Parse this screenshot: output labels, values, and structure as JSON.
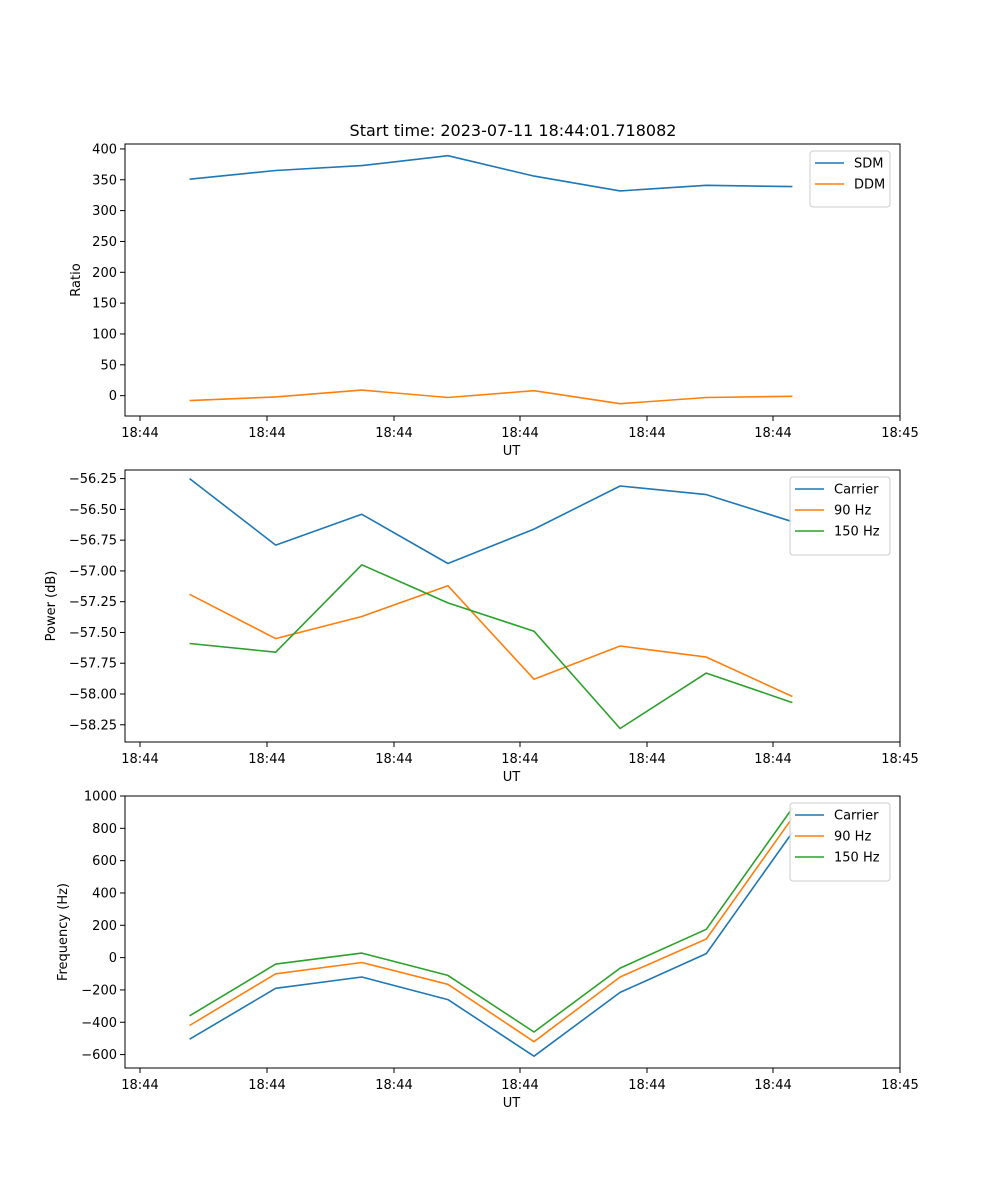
{
  "title": "Start time: 2023-07-11 18:44:01.718082",
  "colors": {
    "c0": "#1f77b4",
    "c1": "#ff7f0e",
    "c2": "#2ca02c"
  },
  "chart_data": [
    {
      "type": "line",
      "title": "Start time: 2023-07-11 18:44:01.718082",
      "xlabel": "UT",
      "ylabel": "Ratio",
      "xticks": [
        "18:44",
        "18:44",
        "18:44",
        "18:44",
        "18:44",
        "18:44",
        "18:44"
      ],
      "xlim": [
        0,
        9
      ],
      "x": [
        0.75,
        1.75,
        2.75,
        3.75,
        4.75,
        5.75,
        6.75,
        7.75
      ],
      "ylim": [
        -33,
        408
      ],
      "yticks": [
        0,
        50,
        100,
        150,
        200,
        250,
        300,
        350,
        400
      ],
      "legend_loc": "upper-right",
      "series": [
        {
          "name": "SDM",
          "color": "#1f77b4",
          "values": [
            351,
            365,
            373,
            389,
            356,
            332,
            341,
            339
          ]
        },
        {
          "name": "DDM",
          "color": "#ff7f0e",
          "values": [
            -8,
            -2,
            9,
            -3,
            8,
            -13,
            -3,
            -1
          ]
        }
      ]
    },
    {
      "type": "line",
      "title": "",
      "xlabel": "UT",
      "ylabel": "Power (dB)",
      "xticks": [
        "18:44",
        "18:44",
        "18:44",
        "18:44",
        "18:44",
        "18:44",
        "18:44"
      ],
      "xlim": [
        0,
        9
      ],
      "x": [
        0.75,
        1.75,
        2.75,
        3.75,
        4.75,
        5.75,
        6.75,
        7.75
      ],
      "ylim": [
        -58.39,
        -56.18
      ],
      "yticks": [
        -58.25,
        -58.0,
        -57.75,
        -57.5,
        -57.25,
        -57.0,
        -56.75,
        -56.5,
        -56.25
      ],
      "tick_format": "2dp",
      "legend_loc": "upper-right",
      "series": [
        {
          "name": "Carrier",
          "color": "#1f77b4",
          "values": [
            -56.25,
            -56.79,
            -56.54,
            -56.94,
            -56.66,
            -56.31,
            -56.38,
            -56.6
          ]
        },
        {
          "name": "90 Hz",
          "color": "#ff7f0e",
          "values": [
            -57.19,
            -57.55,
            -57.37,
            -57.12,
            -57.88,
            -57.61,
            -57.7,
            -58.02
          ]
        },
        {
          "name": "150 Hz",
          "color": "#2ca02c",
          "values": [
            -57.59,
            -57.66,
            -56.95,
            -57.26,
            -57.49,
            -58.28,
            -57.83,
            -58.07
          ]
        }
      ]
    },
    {
      "type": "line",
      "title": "",
      "xlabel": "UT",
      "ylabel": "Frequency (Hz)",
      "xticks": [
        "18:44",
        "18:44",
        "18:44",
        "18:44",
        "18:44",
        "18:44",
        "18:44"
      ],
      "xlim": [
        0,
        9
      ],
      "x": [
        0.75,
        1.75,
        2.75,
        3.75,
        4.75,
        5.75,
        6.75,
        7.75
      ],
      "ylim": [
        -683,
        1000
      ],
      "yticks": [
        -600,
        -400,
        -200,
        0,
        200,
        400,
        600,
        800,
        1000
      ],
      "legend_loc": "upper-right",
      "series": [
        {
          "name": "Carrier",
          "color": "#1f77b4",
          "values": [
            -505,
            -190,
            -120,
            -260,
            -610,
            -215,
            25,
            775
          ]
        },
        {
          "name": "90 Hz",
          "color": "#ff7f0e",
          "values": [
            -420,
            -100,
            -30,
            -165,
            -520,
            -120,
            115,
            865
          ]
        },
        {
          "name": "150 Hz",
          "color": "#2ca02c",
          "values": [
            -360,
            -40,
            28,
            -110,
            -460,
            -65,
            175,
            925
          ]
        }
      ]
    }
  ],
  "last_tick_label": "18:45"
}
